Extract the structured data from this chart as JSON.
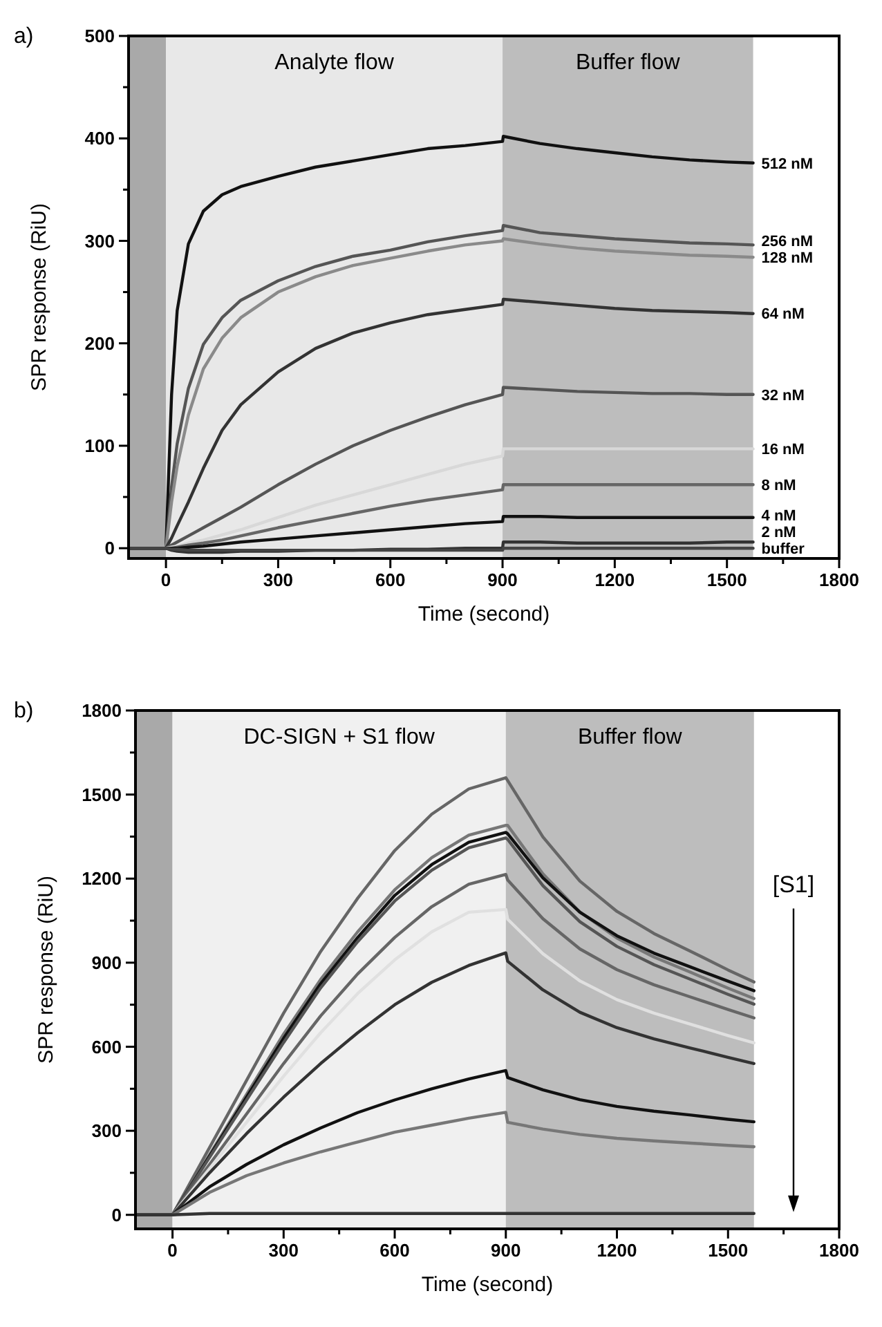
{
  "chart_data": [
    {
      "type": "line",
      "title": "a)",
      "xlabel": "Time (second)",
      "ylabel": "SPR response (RiU)",
      "xlim": [
        -100,
        1800
      ],
      "ylim": [
        -10,
        500
      ],
      "xticks": [
        0,
        {
          "value": 150,
          "label": null
        },
        300,
        {
          "value": 450,
          "label": null
        },
        600,
        {
          "value": 750,
          "label": null
        },
        900,
        {
          "value": 1050,
          "label": null
        },
        1200,
        {
          "value": 1350,
          "label": null
        },
        1500,
        {
          "value": 1650,
          "label": null
        },
        1800
      ],
      "yticks": [
        0,
        {
          "value": 50,
          "label": null
        },
        100,
        {
          "value": 150,
          "label": null
        },
        200,
        {
          "value": 250,
          "label": null
        },
        300,
        {
          "value": 350,
          "label": null
        },
        400,
        {
          "value": 450,
          "label": null
        },
        500
      ],
      "bands": [
        {
          "axis": "x",
          "from": -100,
          "to": 0,
          "color": "#a9a9a9"
        },
        {
          "axis": "x",
          "from": 0,
          "to": 900,
          "label": "Analyte flow",
          "color": "#e8e8e8"
        },
        {
          "axis": "x",
          "from": 900,
          "to": 1570,
          "label": "Buffer flow",
          "color": "#bdbdbd"
        }
      ],
      "x": [
        -100,
        -50,
        0,
        15,
        30,
        60,
        100,
        150,
        200,
        300,
        400,
        500,
        600,
        700,
        800,
        900,
        902,
        1000,
        1100,
        1200,
        1300,
        1400,
        1500,
        1570
      ],
      "series": [
        {
          "name": "512 nM",
          "color": "#111111",
          "values": [
            0,
            0,
            0,
            150,
            232,
            297,
            329,
            345,
            353,
            363,
            372,
            378,
            384,
            390,
            393,
            397,
            402,
            395,
            390,
            386,
            382,
            379,
            377,
            376
          ]
        },
        {
          "name": "256 nM",
          "color": "#555555",
          "values": [
            0,
            0,
            0,
            60,
            102,
            156,
            199,
            225,
            242,
            261,
            275,
            285,
            291,
            299,
            305,
            310,
            315,
            308,
            305,
            302,
            300,
            298,
            297,
            296
          ]
        },
        {
          "name": "128 nM",
          "color": "#8a8a8a",
          "values": [
            0,
            0,
            0,
            45,
            80,
            130,
            175,
            205,
            225,
            250,
            265,
            276,
            283,
            290,
            296,
            300,
            302,
            297,
            293,
            290,
            288,
            286,
            285,
            284
          ]
        },
        {
          "name": "64 nM",
          "color": "#333333",
          "values": [
            0,
            0,
            0,
            10,
            22,
            45,
            78,
            115,
            140,
            172,
            195,
            210,
            220,
            228,
            233,
            238,
            243,
            240,
            237,
            234,
            232,
            231,
            230,
            229
          ]
        },
        {
          "name": "32 nM",
          "color": "#555555",
          "values": [
            0,
            0,
            0,
            3,
            6,
            12,
            20,
            30,
            40,
            62,
            82,
            100,
            115,
            128,
            140,
            150,
            157,
            155,
            153,
            152,
            151,
            151,
            150,
            150
          ]
        },
        {
          "name": "16 nM",
          "color": "#d8d8d8",
          "values": [
            0,
            0,
            0,
            1,
            2,
            5,
            8,
            13,
            18,
            30,
            42,
            52,
            62,
            72,
            82,
            90,
            97,
            97,
            97,
            97,
            97,
            97,
            97,
            97
          ]
        },
        {
          "name": "8 nM",
          "color": "#666666",
          "values": [
            0,
            0,
            0,
            0,
            1,
            3,
            5,
            8,
            12,
            20,
            27,
            34,
            41,
            47,
            52,
            57,
            62,
            62,
            62,
            62,
            62,
            62,
            62,
            62
          ]
        },
        {
          "name": "4 nM",
          "color": "#111111",
          "values": [
            0,
            0,
            0,
            0,
            0,
            1,
            2,
            4,
            6,
            9,
            12,
            15,
            18,
            21,
            24,
            26,
            31,
            31,
            30,
            30,
            30,
            30,
            30,
            30
          ]
        },
        {
          "name": "2 nM",
          "color": "#333333",
          "values": [
            0,
            0,
            0,
            -2,
            -3,
            -4,
            -4,
            -4,
            -3,
            -3,
            -2,
            -2,
            -1,
            -1,
            0,
            0,
            6,
            6,
            5,
            5,
            5,
            5,
            6,
            6
          ]
        },
        {
          "name": "buffer",
          "color": "#444444",
          "values": [
            0,
            0,
            0,
            -1,
            -1,
            -2,
            -2,
            -2,
            -2,
            -2,
            -2,
            -2,
            -2,
            -2,
            -2,
            -2,
            0,
            0,
            0,
            0,
            0,
            0,
            0,
            0
          ]
        }
      ]
    },
    {
      "type": "line",
      "title": "b)",
      "xlabel": "Time (second)",
      "ylabel": "SPR response (RiU)",
      "xlim": [
        -100,
        1800
      ],
      "ylim": [
        -50,
        1800
      ],
      "xticks": [
        0,
        {
          "value": 150,
          "label": null
        },
        300,
        {
          "value": 450,
          "label": null
        },
        600,
        {
          "value": 750,
          "label": null
        },
        900,
        {
          "value": 1050,
          "label": null
        },
        1200,
        {
          "value": 1350,
          "label": null
        },
        1500,
        {
          "value": 1650,
          "label": null
        },
        1800
      ],
      "yticks": [
        0,
        {
          "value": 150,
          "label": null
        },
        300,
        {
          "value": 450,
          "label": null
        },
        600,
        {
          "value": 750,
          "label": null
        },
        900,
        {
          "value": 1050,
          "label": null
        },
        1200,
        {
          "value": 1350,
          "label": null
        },
        1500,
        {
          "value": 1650,
          "label": null
        },
        1800
      ],
      "bands": [
        {
          "axis": "x",
          "from": -100,
          "to": 0,
          "color": "#a9a9a9"
        },
        {
          "axis": "x",
          "from": 0,
          "to": 900,
          "label": "DC-SIGN + S1 flow",
          "color": "#f0f0f0"
        },
        {
          "axis": "x",
          "from": 900,
          "to": 1570,
          "label": "Buffer flow",
          "color": "#bdbdbd"
        }
      ],
      "annotations": [
        "[S1]"
      ],
      "x": [
        -100,
        0,
        100,
        200,
        300,
        400,
        500,
        600,
        700,
        800,
        900,
        905,
        1000,
        1100,
        1200,
        1300,
        1400,
        1500,
        1570
      ],
      "series": [
        {
          "color": "#666666",
          "values": [
            0,
            0,
            240,
            480,
            720,
            940,
            1130,
            1300,
            1430,
            1520,
            1560,
            1550,
            1349,
            1191,
            1083,
            1004,
            940,
            874,
            831
          ]
        },
        {
          "color": "#777777",
          "values": [
            0,
            0,
            215,
            430,
            645,
            840,
            1010,
            1160,
            1275,
            1355,
            1390,
            1390,
            1217,
            1081,
            988,
            920,
            865,
            809,
            772
          ]
        },
        {
          "color": "#111111",
          "values": [
            0,
            0,
            210,
            420,
            630,
            825,
            990,
            1140,
            1250,
            1330,
            1365,
            1360,
            1203,
            1080,
            996,
            934,
            884,
            834,
            800
          ]
        },
        {
          "color": "#555555",
          "values": [
            0,
            0,
            205,
            410,
            615,
            810,
            975,
            1120,
            1230,
            1310,
            1345,
            1340,
            1175,
            1046,
            958,
            893,
            840,
            787,
            752
          ]
        },
        {
          "color": "#666666",
          "values": [
            0,
            0,
            180,
            360,
            540,
            710,
            860,
            990,
            1100,
            1180,
            1215,
            1195,
            1057,
            949,
            875,
            821,
            777,
            733,
            703
          ]
        },
        {
          "color": "#e0e0e0",
          "values": [
            0,
            0,
            165,
            330,
            495,
            650,
            790,
            910,
            1010,
            1080,
            1090,
            1055,
            932,
            835,
            768,
            720,
            680,
            640,
            614
          ]
        },
        {
          "color": "#333333",
          "values": [
            0,
            0,
            150,
            290,
            420,
            540,
            650,
            750,
            830,
            890,
            935,
            905,
            803,
            723,
            668,
            628,
            595,
            562,
            540
          ]
        },
        {
          "color": "#111111",
          "values": [
            0,
            0,
            100,
            180,
            250,
            310,
            365,
            410,
            450,
            485,
            515,
            490,
            446,
            411,
            387,
            370,
            356,
            341,
            332
          ]
        },
        {
          "color": "#777777",
          "values": [
            0,
            0,
            80,
            140,
            185,
            225,
            260,
            295,
            320,
            345,
            366,
            330,
            306,
            287,
            273,
            264,
            256,
            248,
            243
          ]
        },
        {
          "color": "#333333",
          "values": [
            0,
            0,
            5,
            5,
            5,
            5,
            5,
            5,
            5,
            5,
            5,
            5,
            5,
            5,
            5,
            5,
            5,
            5,
            5
          ]
        }
      ]
    }
  ]
}
